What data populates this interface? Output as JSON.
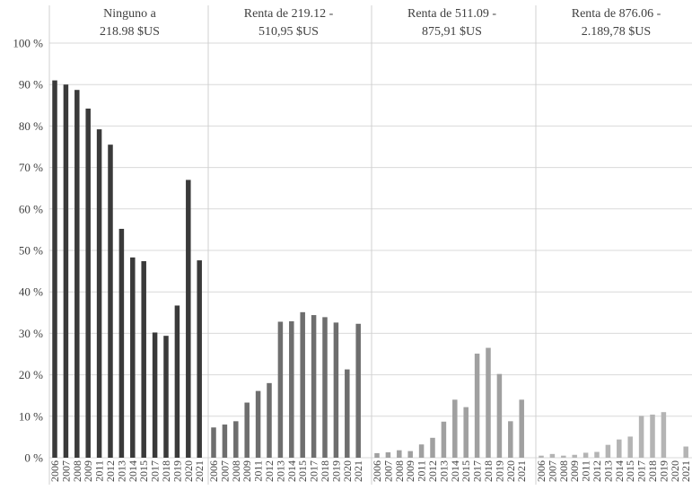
{
  "chart_data": {
    "type": "bar",
    "y_ticks": [
      "0 %",
      "10 %",
      "20 %",
      "30 %",
      "40 %",
      "50 %",
      "60 %",
      "70 %",
      "80 %",
      "90 %",
      "100 %"
    ],
    "ylim": [
      0,
      100
    ],
    "grid": true,
    "panels": [
      {
        "title_lines": [
          "Ninguno a",
          "218.98 $US"
        ],
        "color": "#3a3a3a",
        "years": [
          "2006",
          "2007",
          "2008",
          "2009",
          "2011",
          "2012",
          "2013",
          "2014",
          "2015",
          "2017",
          "2018",
          "2019",
          "2020",
          "2021"
        ],
        "values": [
          91.0,
          90.0,
          88.7,
          84.2,
          79.2,
          75.5,
          55.2,
          48.3,
          47.4,
          30.2,
          29.4,
          36.7,
          67.0,
          47.6
        ]
      },
      {
        "title_lines": [
          "Renta de 219.12 -",
          "510,95 $US"
        ],
        "color": "#6e6e6e",
        "years": [
          "2006",
          "2007",
          "2008",
          "2009",
          "2011",
          "2012",
          "2013",
          "2014",
          "2015",
          "2017",
          "2018",
          "2019",
          "2020",
          "2021"
        ],
        "values": [
          7.3,
          8.0,
          8.8,
          13.3,
          16.1,
          18.0,
          32.8,
          32.9,
          35.1,
          34.4,
          33.9,
          32.6,
          21.3,
          32.3
        ]
      },
      {
        "title_lines": [
          "Renta de 511.09 -",
          "875,91 $US"
        ],
        "color": "#a0a0a0",
        "years": [
          "2006",
          "2007",
          "2008",
          "2009",
          "2011",
          "2012",
          "2013",
          "2014",
          "2015",
          "2017",
          "2018",
          "2019",
          "2020",
          "2021"
        ],
        "values": [
          1.1,
          1.3,
          1.8,
          1.6,
          3.2,
          4.8,
          8.7,
          14.0,
          12.2,
          25.1,
          26.5,
          20.2,
          8.8,
          14.0
        ]
      },
      {
        "title_lines": [
          "Renta de 876.06 -",
          "2.189,78 $US"
        ],
        "color": "#b4b4b4",
        "years": [
          "2006",
          "2007",
          "2008",
          "2009",
          "2011",
          "2012",
          "2013",
          "2014",
          "2015",
          "2017",
          "2018",
          "2019",
          "2020",
          "2021"
        ],
        "values": [
          0.5,
          0.9,
          0.5,
          0.7,
          1.2,
          1.4,
          3.1,
          4.4,
          5.1,
          10.1,
          10.4,
          11.0,
          0.0,
          2.7
        ]
      }
    ]
  }
}
